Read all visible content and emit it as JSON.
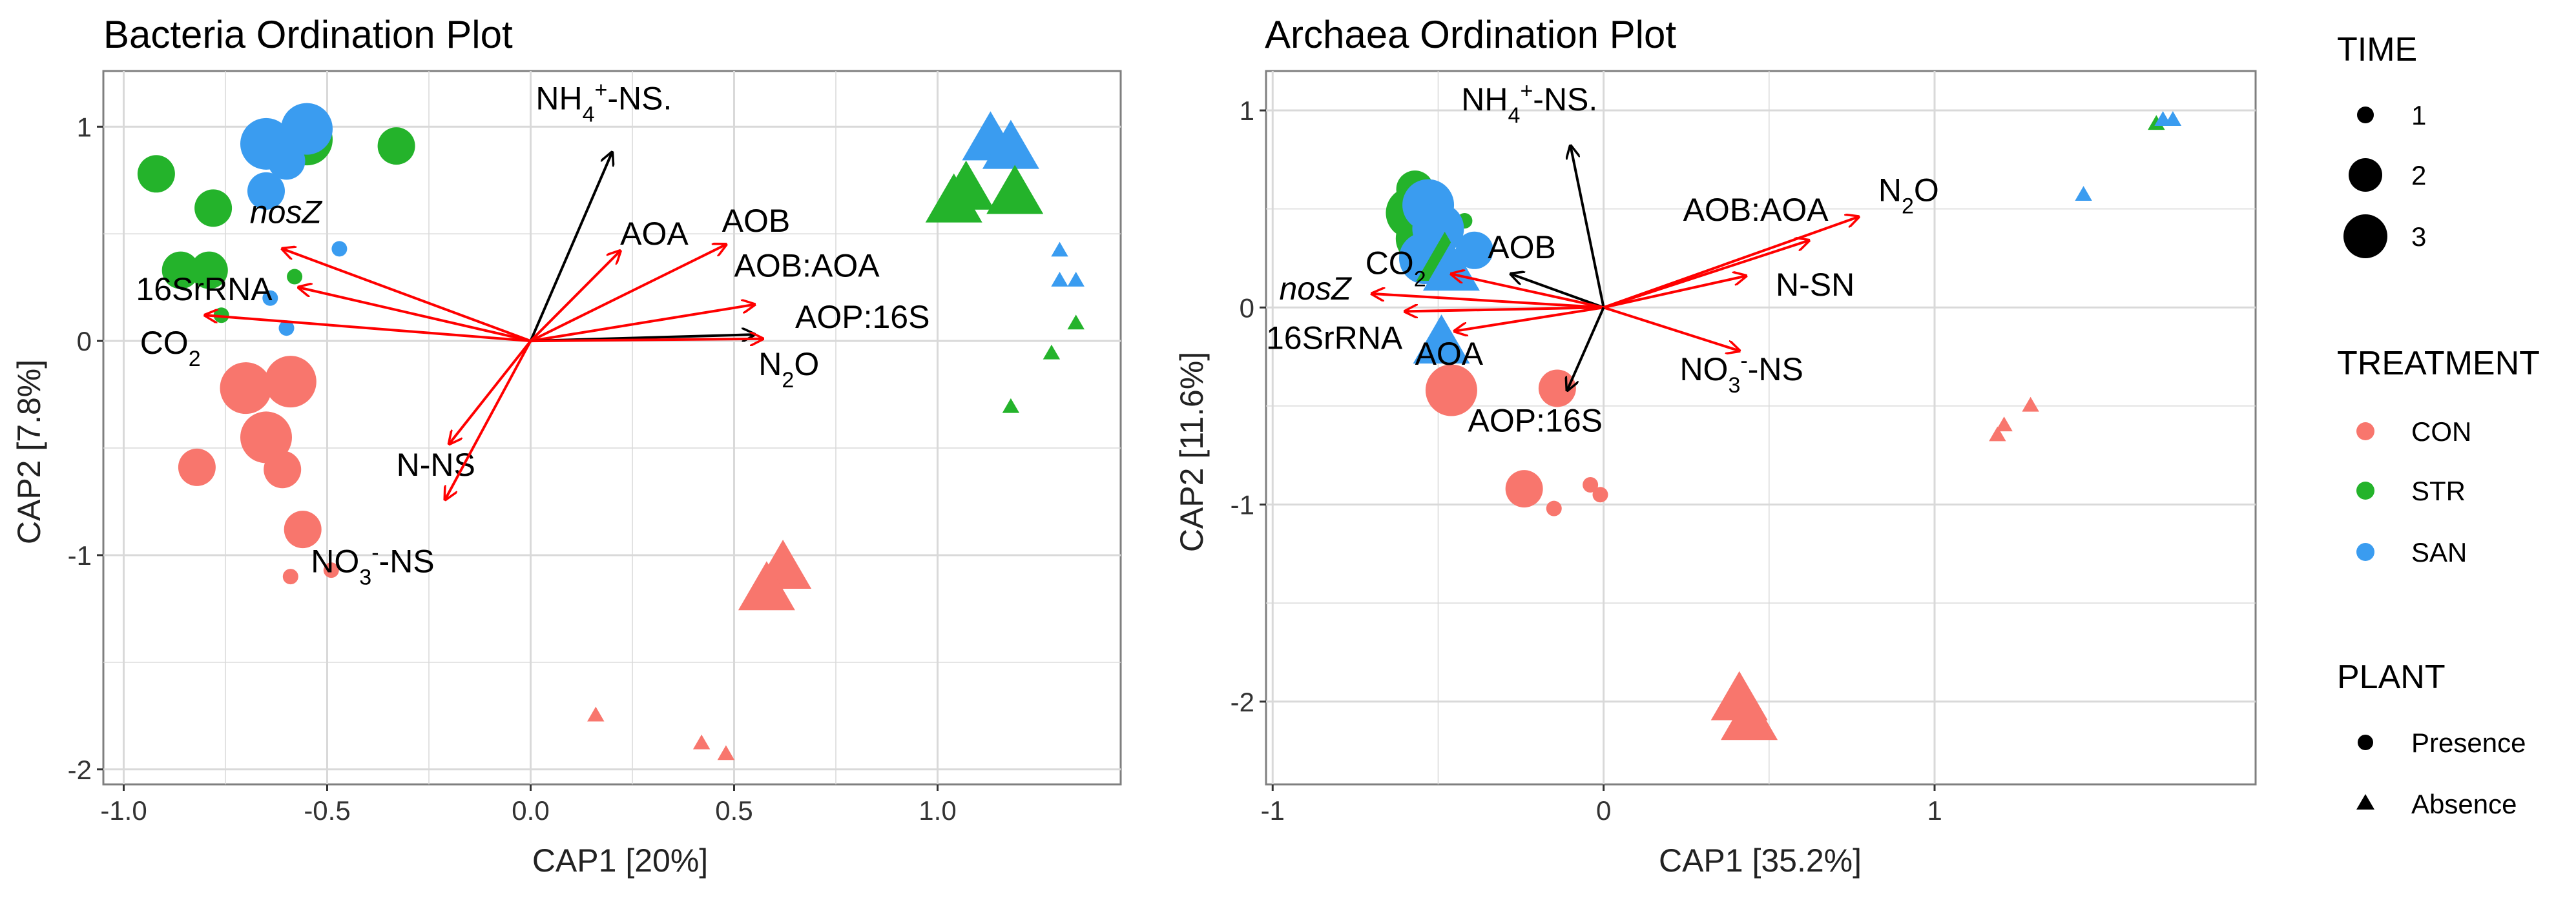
{
  "colors": {
    "CON": "#F8766D",
    "STR": "#24B32B",
    "SAN": "#3A9CF0",
    "arrow_red": "#FF0000",
    "arrow_black": "#000000",
    "grid": "#D9D9D9",
    "panel_border": "#7F7F7F"
  },
  "chart_data": [
    {
      "type": "scatter",
      "title": "Bacteria Ordination Plot",
      "xlabel": "CAP1   [20%]",
      "ylabel": "CAP2   [7.8%]",
      "xlim": [
        -1.05,
        1.45
      ],
      "ylim": [
        -2.07,
        1.26
      ],
      "xticks": [
        -1.0,
        -0.5,
        0.0,
        0.5,
        1.0
      ],
      "xtick_labels": [
        "-1.0",
        "-0.5",
        "0.0",
        "0.5",
        "1.0"
      ],
      "yticks": [
        -2,
        -1,
        0,
        1
      ],
      "ytick_labels": [
        "-2",
        "-1",
        "0",
        "1"
      ],
      "points": [
        {
          "x": -0.92,
          "y": 0.78,
          "t": "STR",
          "time": 2,
          "plant": "Presence"
        },
        {
          "x": -0.78,
          "y": 0.62,
          "t": "STR",
          "time": 2,
          "plant": "Presence"
        },
        {
          "x": -0.33,
          "y": 0.91,
          "t": "STR",
          "time": 2,
          "plant": "Presence"
        },
        {
          "x": -0.55,
          "y": 0.94,
          "t": "STR",
          "time": 3,
          "plant": "Presence"
        },
        {
          "x": -0.86,
          "y": 0.33,
          "t": "STR",
          "time": 2,
          "plant": "Presence"
        },
        {
          "x": -0.79,
          "y": 0.33,
          "t": "STR",
          "time": 2,
          "plant": "Presence"
        },
        {
          "x": -0.58,
          "y": 0.3,
          "t": "STR",
          "time": 1,
          "plant": "Presence"
        },
        {
          "x": -0.76,
          "y": 0.12,
          "t": "STR",
          "time": 1,
          "plant": "Presence"
        },
        {
          "x": -0.65,
          "y": 0.92,
          "t": "SAN",
          "time": 3,
          "plant": "Presence"
        },
        {
          "x": -0.55,
          "y": 0.99,
          "t": "SAN",
          "time": 3,
          "plant": "Presence"
        },
        {
          "x": -0.6,
          "y": 0.84,
          "t": "SAN",
          "time": 2,
          "plant": "Presence"
        },
        {
          "x": -0.65,
          "y": 0.7,
          "t": "SAN",
          "time": 2,
          "plant": "Presence"
        },
        {
          "x": -0.47,
          "y": 0.43,
          "t": "SAN",
          "time": 1,
          "plant": "Presence"
        },
        {
          "x": -0.64,
          "y": 0.2,
          "t": "SAN",
          "time": 1,
          "plant": "Presence"
        },
        {
          "x": -0.6,
          "y": 0.06,
          "t": "SAN",
          "time": 1,
          "plant": "Presence"
        },
        {
          "x": -0.7,
          "y": -0.22,
          "t": "CON",
          "time": 3,
          "plant": "Presence"
        },
        {
          "x": -0.59,
          "y": -0.19,
          "t": "CON",
          "time": 3,
          "plant": "Presence"
        },
        {
          "x": -0.65,
          "y": -0.45,
          "t": "CON",
          "time": 3,
          "plant": "Presence"
        },
        {
          "x": -0.82,
          "y": -0.59,
          "t": "CON",
          "time": 2,
          "plant": "Presence"
        },
        {
          "x": -0.61,
          "y": -0.6,
          "t": "CON",
          "time": 2,
          "plant": "Presence"
        },
        {
          "x": -0.56,
          "y": -0.88,
          "t": "CON",
          "time": 2,
          "plant": "Presence"
        },
        {
          "x": -0.59,
          "y": -1.1,
          "t": "CON",
          "time": 1,
          "plant": "Presence"
        },
        {
          "x": -0.49,
          "y": -1.07,
          "t": "CON",
          "time": 1,
          "plant": "Presence"
        },
        {
          "x": 1.13,
          "y": 0.93,
          "t": "SAN",
          "time": 3,
          "plant": "Absence"
        },
        {
          "x": 1.18,
          "y": 0.89,
          "t": "SAN",
          "time": 3,
          "plant": "Absence"
        },
        {
          "x": 1.07,
          "y": 0.7,
          "t": "STR",
          "time": 3,
          "plant": "Absence"
        },
        {
          "x": 1.19,
          "y": 0.68,
          "t": "STR",
          "time": 3,
          "plant": "Absence"
        },
        {
          "x": 1.04,
          "y": 0.64,
          "t": "STR",
          "time": 3,
          "plant": "Absence"
        },
        {
          "x": 1.3,
          "y": 0.42,
          "t": "SAN",
          "time": 1,
          "plant": "Absence"
        },
        {
          "x": 1.3,
          "y": 0.28,
          "t": "SAN",
          "time": 1,
          "plant": "Absence"
        },
        {
          "x": 1.34,
          "y": 0.28,
          "t": "SAN",
          "time": 1,
          "plant": "Absence"
        },
        {
          "x": 1.34,
          "y": 0.08,
          "t": "STR",
          "time": 1,
          "plant": "Absence"
        },
        {
          "x": 1.28,
          "y": -0.06,
          "t": "STR",
          "time": 1,
          "plant": "Absence"
        },
        {
          "x": 1.18,
          "y": -0.31,
          "t": "STR",
          "time": 1,
          "plant": "Absence"
        },
        {
          "x": 0.62,
          "y": -1.07,
          "t": "CON",
          "time": 3,
          "plant": "Absence"
        },
        {
          "x": 0.58,
          "y": -1.17,
          "t": "CON",
          "time": 3,
          "plant": "Absence"
        },
        {
          "x": 0.16,
          "y": -1.75,
          "t": "CON",
          "time": 1,
          "plant": "Absence"
        },
        {
          "x": 0.42,
          "y": -1.88,
          "t": "CON",
          "time": 1,
          "plant": "Absence"
        },
        {
          "x": 0.48,
          "y": -1.93,
          "t": "CON",
          "time": 1,
          "plant": "Absence"
        }
      ],
      "arrows": [
        {
          "label": "NH4+-NS.",
          "x": 0.2,
          "y": 0.88,
          "color": "black",
          "lx": 0.18,
          "ly": 1.08,
          "anchor": "middle"
        },
        {
          "label": "AOA",
          "x": 0.22,
          "y": 0.42,
          "color": "red",
          "lx": 0.22,
          "ly": 0.45,
          "anchor": "start"
        },
        {
          "label": "AOB",
          "x": 0.48,
          "y": 0.45,
          "color": "red",
          "lx": 0.47,
          "ly": 0.51,
          "anchor": "start"
        },
        {
          "label": "AOB:AOA",
          "x": 0.55,
          "y": 0.17,
          "color": "red",
          "lx": 0.5,
          "ly": 0.3,
          "anchor": "start"
        },
        {
          "label": "AOP:16S",
          "x": 0.55,
          "y": 0.03,
          "color": "black",
          "lx": 0.65,
          "ly": 0.06,
          "anchor": "start"
        },
        {
          "label": "N2O",
          "x": 0.57,
          "y": 0.01,
          "color": "red",
          "lx": 0.56,
          "ly": -0.16,
          "anchor": "start"
        },
        {
          "label": "nosZ",
          "x": -0.61,
          "y": 0.43,
          "color": "red",
          "lx": -0.69,
          "ly": 0.55,
          "anchor": "start"
        },
        {
          "label": "16SrRNA",
          "x": -0.57,
          "y": 0.25,
          "color": "red",
          "lx": -0.97,
          "ly": 0.19,
          "anchor": "start"
        },
        {
          "label": "CO2",
          "x": -0.8,
          "y": 0.12,
          "color": "red",
          "lx": -0.96,
          "ly": -0.06,
          "anchor": "start"
        },
        {
          "label": "N-NS",
          "x": -0.2,
          "y": -0.48,
          "color": "red",
          "lx": -0.33,
          "ly": -0.63,
          "anchor": "start"
        },
        {
          "label": "NO3--NS",
          "x": -0.21,
          "y": -0.74,
          "color": "red",
          "lx": -0.54,
          "ly": -1.08,
          "anchor": "start"
        }
      ]
    },
    {
      "type": "scatter",
      "title": "Archaea Ordination Plot",
      "xlabel": "CAP1   [35.2%]",
      "ylabel": "CAP2   [11.6%]",
      "xlim": [
        -1.02,
        1.97
      ],
      "ylim": [
        -2.42,
        1.2
      ],
      "xticks": [
        -1,
        0,
        1
      ],
      "xtick_labels": [
        "-1",
        "0",
        "1"
      ],
      "yticks": [
        -2,
        -1,
        0,
        1
      ],
      "ytick_labels": [
        "-2",
        "-1",
        "0",
        "1"
      ],
      "points": [
        {
          "x": -0.57,
          "y": 0.6,
          "t": "STR",
          "time": 2,
          "plant": "Presence"
        },
        {
          "x": -0.42,
          "y": 0.44,
          "t": "STR",
          "time": 1,
          "plant": "Presence"
        },
        {
          "x": -0.58,
          "y": 0.48,
          "t": "STR",
          "time": 3,
          "plant": "Presence"
        },
        {
          "x": -0.55,
          "y": 0.35,
          "t": "STR",
          "time": 3,
          "plant": "Presence"
        },
        {
          "x": -0.53,
          "y": 0.52,
          "t": "SAN",
          "time": 3,
          "plant": "Presence"
        },
        {
          "x": -0.5,
          "y": 0.4,
          "t": "SAN",
          "time": 3,
          "plant": "Presence"
        },
        {
          "x": -0.54,
          "y": 0.25,
          "t": "SAN",
          "time": 3,
          "plant": "Presence"
        },
        {
          "x": -0.39,
          "y": 0.29,
          "t": "SAN",
          "time": 2,
          "plant": "Presence"
        },
        {
          "x": -0.46,
          "y": -0.42,
          "t": "CON",
          "time": 3,
          "plant": "Presence"
        },
        {
          "x": -0.14,
          "y": -0.41,
          "t": "CON",
          "time": 2,
          "plant": "Presence"
        },
        {
          "x": -0.24,
          "y": -0.92,
          "t": "CON",
          "time": 2,
          "plant": "Presence"
        },
        {
          "x": -0.04,
          "y": -0.9,
          "t": "CON",
          "time": 1,
          "plant": "Presence"
        },
        {
          "x": -0.01,
          "y": -0.95,
          "t": "CON",
          "time": 1,
          "plant": "Presence"
        },
        {
          "x": -0.15,
          "y": -1.02,
          "t": "CON",
          "time": 1,
          "plant": "Presence"
        },
        {
          "x": -0.48,
          "y": 0.23,
          "t": "STR",
          "time": 3,
          "plant": "Absence"
        },
        {
          "x": -0.46,
          "y": 0.18,
          "t": "SAN",
          "time": 3,
          "plant": "Absence"
        },
        {
          "x": -0.49,
          "y": -0.19,
          "t": "SAN",
          "time": 3,
          "plant": "Absence"
        },
        {
          "x": -0.48,
          "y": -0.12,
          "t": "SAN",
          "time": 1,
          "plant": "Absence"
        },
        {
          "x": 1.67,
          "y": 0.93,
          "t": "STR",
          "time": 1,
          "plant": "Absence"
        },
        {
          "x": 1.69,
          "y": 0.95,
          "t": "SAN",
          "time": 1,
          "plant": "Absence"
        },
        {
          "x": 1.72,
          "y": 0.95,
          "t": "SAN",
          "time": 1,
          "plant": "Absence"
        },
        {
          "x": 1.45,
          "y": 0.57,
          "t": "SAN",
          "time": 1,
          "plant": "Absence"
        },
        {
          "x": 1.29,
          "y": -0.5,
          "t": "CON",
          "time": 1,
          "plant": "Absence"
        },
        {
          "x": 1.21,
          "y": -0.6,
          "t": "CON",
          "time": 1,
          "plant": "Absence"
        },
        {
          "x": 1.19,
          "y": -0.65,
          "t": "CON",
          "time": 1,
          "plant": "Absence"
        },
        {
          "x": 0.41,
          "y": -2.0,
          "t": "CON",
          "time": 3,
          "plant": "Absence"
        },
        {
          "x": 0.44,
          "y": -2.1,
          "t": "CON",
          "time": 3,
          "plant": "Absence"
        }
      ],
      "arrows": [
        {
          "label": "NH4+-NS.",
          "x": -0.1,
          "y": 0.82,
          "color": "black",
          "lx": -0.43,
          "ly": 1.0,
          "anchor": "start"
        },
        {
          "label": "N2O",
          "x": 0.77,
          "y": 0.46,
          "color": "red",
          "lx": 0.83,
          "ly": 0.54,
          "anchor": "start"
        },
        {
          "label": "AOB:AOA",
          "x": 0.62,
          "y": 0.34,
          "color": "red",
          "lx": 0.24,
          "ly": 0.44,
          "anchor": "start"
        },
        {
          "label": "N-SN",
          "x": 0.43,
          "y": 0.16,
          "color": "red",
          "lx": 0.52,
          "ly": 0.06,
          "anchor": "start"
        },
        {
          "label": "NO3--NS",
          "x": 0.41,
          "y": -0.22,
          "color": "red",
          "lx": 0.23,
          "ly": -0.37,
          "anchor": "start"
        },
        {
          "label": "AOB",
          "x": -0.28,
          "y": 0.17,
          "color": "black",
          "lx": -0.35,
          "ly": 0.25,
          "anchor": "start"
        },
        {
          "label": "CO2",
          "x": -0.46,
          "y": 0.17,
          "color": "red",
          "lx": -0.72,
          "ly": 0.17,
          "anchor": "start"
        },
        {
          "label": "nosZ",
          "x": -0.7,
          "y": 0.07,
          "color": "red",
          "lx": -0.98,
          "ly": 0.04,
          "anchor": "start"
        },
        {
          "label": "16SrRNA",
          "x": -0.6,
          "y": -0.02,
          "color": "red",
          "lx": -1.02,
          "ly": -0.21,
          "anchor": "start"
        },
        {
          "label": "AOA",
          "x": -0.45,
          "y": -0.12,
          "color": "red",
          "lx": -0.57,
          "ly": -0.29,
          "anchor": "start"
        },
        {
          "label": "AOP:16S",
          "x": -0.11,
          "y": -0.42,
          "color": "black",
          "lx": -0.41,
          "ly": -0.63,
          "anchor": "start"
        }
      ]
    }
  ],
  "legend": {
    "time": {
      "title": "TIME",
      "items": [
        "1",
        "2",
        "3"
      ]
    },
    "treatment": {
      "title": "TREATMENT",
      "items": [
        "CON",
        "STR",
        "SAN"
      ]
    },
    "plant": {
      "title": "PLANT",
      "items": [
        "Presence",
        "Absence"
      ]
    }
  }
}
